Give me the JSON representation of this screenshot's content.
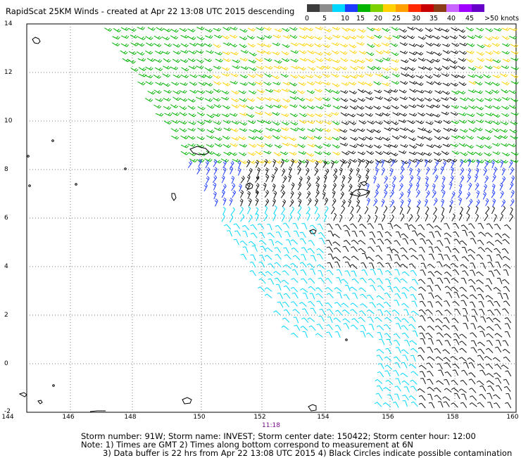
{
  "title": "RapidScat 25KM Winds - created at Apr 22 13:08 UTC 2015 descending",
  "colorbar": {
    "labels": [
      "0",
      "5",
      "10",
      "15",
      "20",
      "25",
      "30",
      "35",
      "40",
      "45"
    ],
    "unit_label": ">50 knots",
    "colors": [
      "#3c3c3c",
      "#8c8c8c",
      "#00d7ff",
      "#1e3cff",
      "#00b400",
      "#7cd200",
      "#ffd200",
      "#ffa000",
      "#ff2800",
      "#c80000",
      "#8c3c14",
      "#c864ff",
      "#a000ff",
      "#6400c8"
    ]
  },
  "axes": {
    "lat_labels": [
      "14",
      "12",
      "10",
      "8",
      "6",
      "4",
      "2",
      "0",
      "-2"
    ],
    "lon_labels": [
      "144",
      "146",
      "148",
      "150",
      "152",
      "154",
      "156",
      "158",
      "160"
    ]
  },
  "time_label": "11:18",
  "footer": {
    "line1": "Storm number: 91W;   Storm name: INVEST;   Storm center date: 150422;   Storm center hour: 12:00",
    "line2": "Note: 1) Times are GMT   2) Times along bottom correspond to measurement at 6N",
    "line3": "3) Data buffer is 22 hrs from Apr 22 13:08 UTC 2015    4) Black Circles indicate possible contamination"
  },
  "map": {
    "lat_range": [
      -2,
      14
    ],
    "lon_range": [
      144,
      160
    ],
    "grid": "dotted"
  }
}
